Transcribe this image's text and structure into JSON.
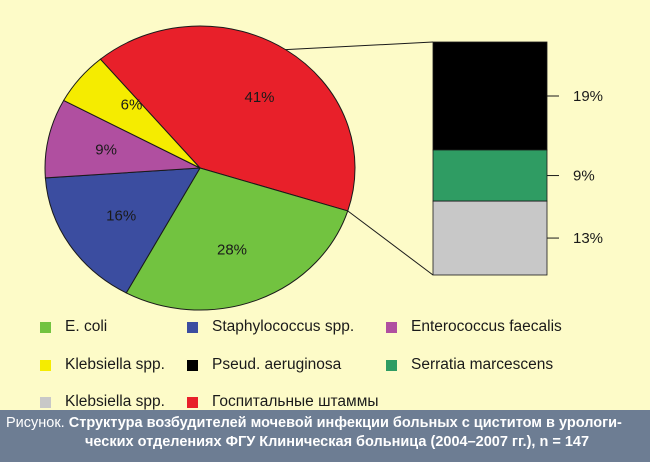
{
  "chart_data": {
    "type": "pie",
    "slices": [
      {
        "label": "Госпитальные штаммы",
        "value": 41,
        "text": "41%",
        "color": "#e8202a"
      },
      {
        "label": "E. coli",
        "value": 28,
        "text": "28%",
        "color": "#72c340"
      },
      {
        "label": "Staphylococcus spp.",
        "value": 16,
        "text": "16%",
        "color": "#3b4da0"
      },
      {
        "label": "Enterococcus faecalis",
        "value": 9,
        "text": "9%",
        "color": "#b04fa0"
      },
      {
        "label": "Klebsiella spp.",
        "value": 6,
        "text": "6%",
        "color": "#f5ec00"
      }
    ],
    "breakdown": {
      "of": "Госпитальные штаммы",
      "type": "stacked-bar",
      "segments": [
        {
          "label": "Pseud. aeruginosa",
          "value": 19,
          "text": "19%",
          "color": "#000000"
        },
        {
          "label": "Serratia marcescens",
          "value": 9,
          "text": "9%",
          "color": "#2f9c63"
        },
        {
          "label": "Klebsiella spp.",
          "value": 13,
          "text": "13%",
          "color": "#c8c8c8"
        }
      ]
    },
    "legend": [
      {
        "label": "E. coli",
        "color": "#72c340"
      },
      {
        "label": "Staphylococcus spp.",
        "color": "#3b4da0"
      },
      {
        "label": "Enterococcus faecalis",
        "color": "#b04fa0"
      },
      {
        "label": "Klebsiella spp.",
        "color": "#f5ec00"
      },
      {
        "label": "Pseud. aeruginosa",
        "color": "#000000"
      },
      {
        "label": "Serratia marcescens",
        "color": "#2f9c63"
      },
      {
        "label": "Klebsiella spp.",
        "color": "#c8c8c8"
      },
      {
        "label": "Госпитальные штаммы",
        "color": "#e8202a"
      }
    ],
    "legend_placement": "bottom"
  },
  "caption": {
    "lead": "Рисунок.",
    "line1": "Структура возбудителей мочевой инфекции больных с циститом в урологи-",
    "line2": "ческих отделениях ФГУ Клиническая больница (2004–2007 гг.), n = 147",
    "background": "#6d7d93"
  },
  "background": "#fdfbc8"
}
